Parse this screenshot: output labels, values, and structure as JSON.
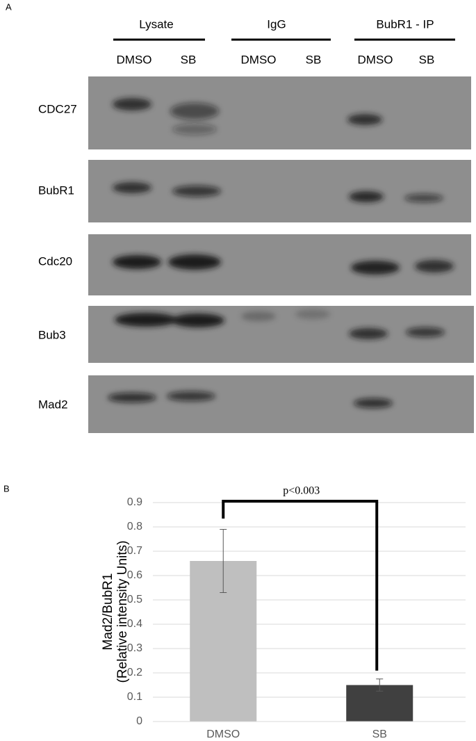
{
  "panel_a": {
    "label": "A",
    "groups": [
      {
        "label": "Lysate"
      },
      {
        "label": "IgG"
      },
      {
        "label": "BubR1 - IP"
      }
    ],
    "lanes": [
      "DMSO",
      "SB",
      "DMSO",
      "SB",
      "DMSO",
      "SB"
    ],
    "rows": [
      "CDC27",
      "BubR1",
      "Cdc20",
      "Bub3",
      "Mad2"
    ]
  },
  "panel_b": {
    "label": "B"
  },
  "chart_data": {
    "type": "bar",
    "ylabel": [
      "Mad2/BubR1",
      "(Relative intensity Units)"
    ],
    "categories": [
      "DMSO",
      "SB"
    ],
    "values": [
      0.66,
      0.15
    ],
    "errors": [
      0.13,
      0.025
    ],
    "colors": [
      "#bfbfbf",
      "#404040"
    ],
    "annotation": "p<0.003",
    "ylim": [
      0,
      0.9
    ],
    "yticks": [
      0,
      0.1,
      0.2,
      0.3,
      0.4,
      0.5,
      0.6,
      0.7,
      0.8,
      0.9
    ],
    "grid": true
  }
}
